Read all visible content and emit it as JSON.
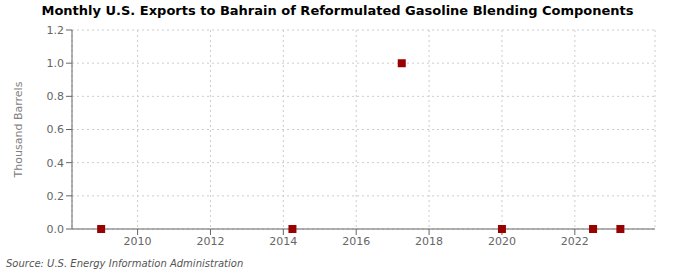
{
  "chart_data": {
    "type": "scatter",
    "title": "Monthly U.S. Exports to Bahrain of Reformulated Gasoline Blending Components",
    "y_label": "Thousand Barrels",
    "annotations": [
      "Source: U.S. Energy Information Administration"
    ],
    "x": [
      2009.0,
      2014.25,
      2017.25,
      2020.0,
      2022.5,
      2023.25
    ],
    "values": [
      0.0,
      0.0,
      1.0,
      0.0,
      0.0,
      0.0
    ],
    "color": "#990000",
    "marker": "square",
    "xlim": [
      2008.2,
      2024.2
    ],
    "ylim": [
      0.0,
      1.2
    ],
    "xticks": [
      2010,
      2012,
      2014,
      2016,
      2018,
      2020,
      2022
    ],
    "yticks": [
      {
        "value": 0.0,
        "label": "0.0"
      },
      0.2,
      0.4,
      0.6,
      0.8,
      {
        "value": 1.0,
        "label": "1.0"
      },
      1.2
    ],
    "grid": true
  }
}
